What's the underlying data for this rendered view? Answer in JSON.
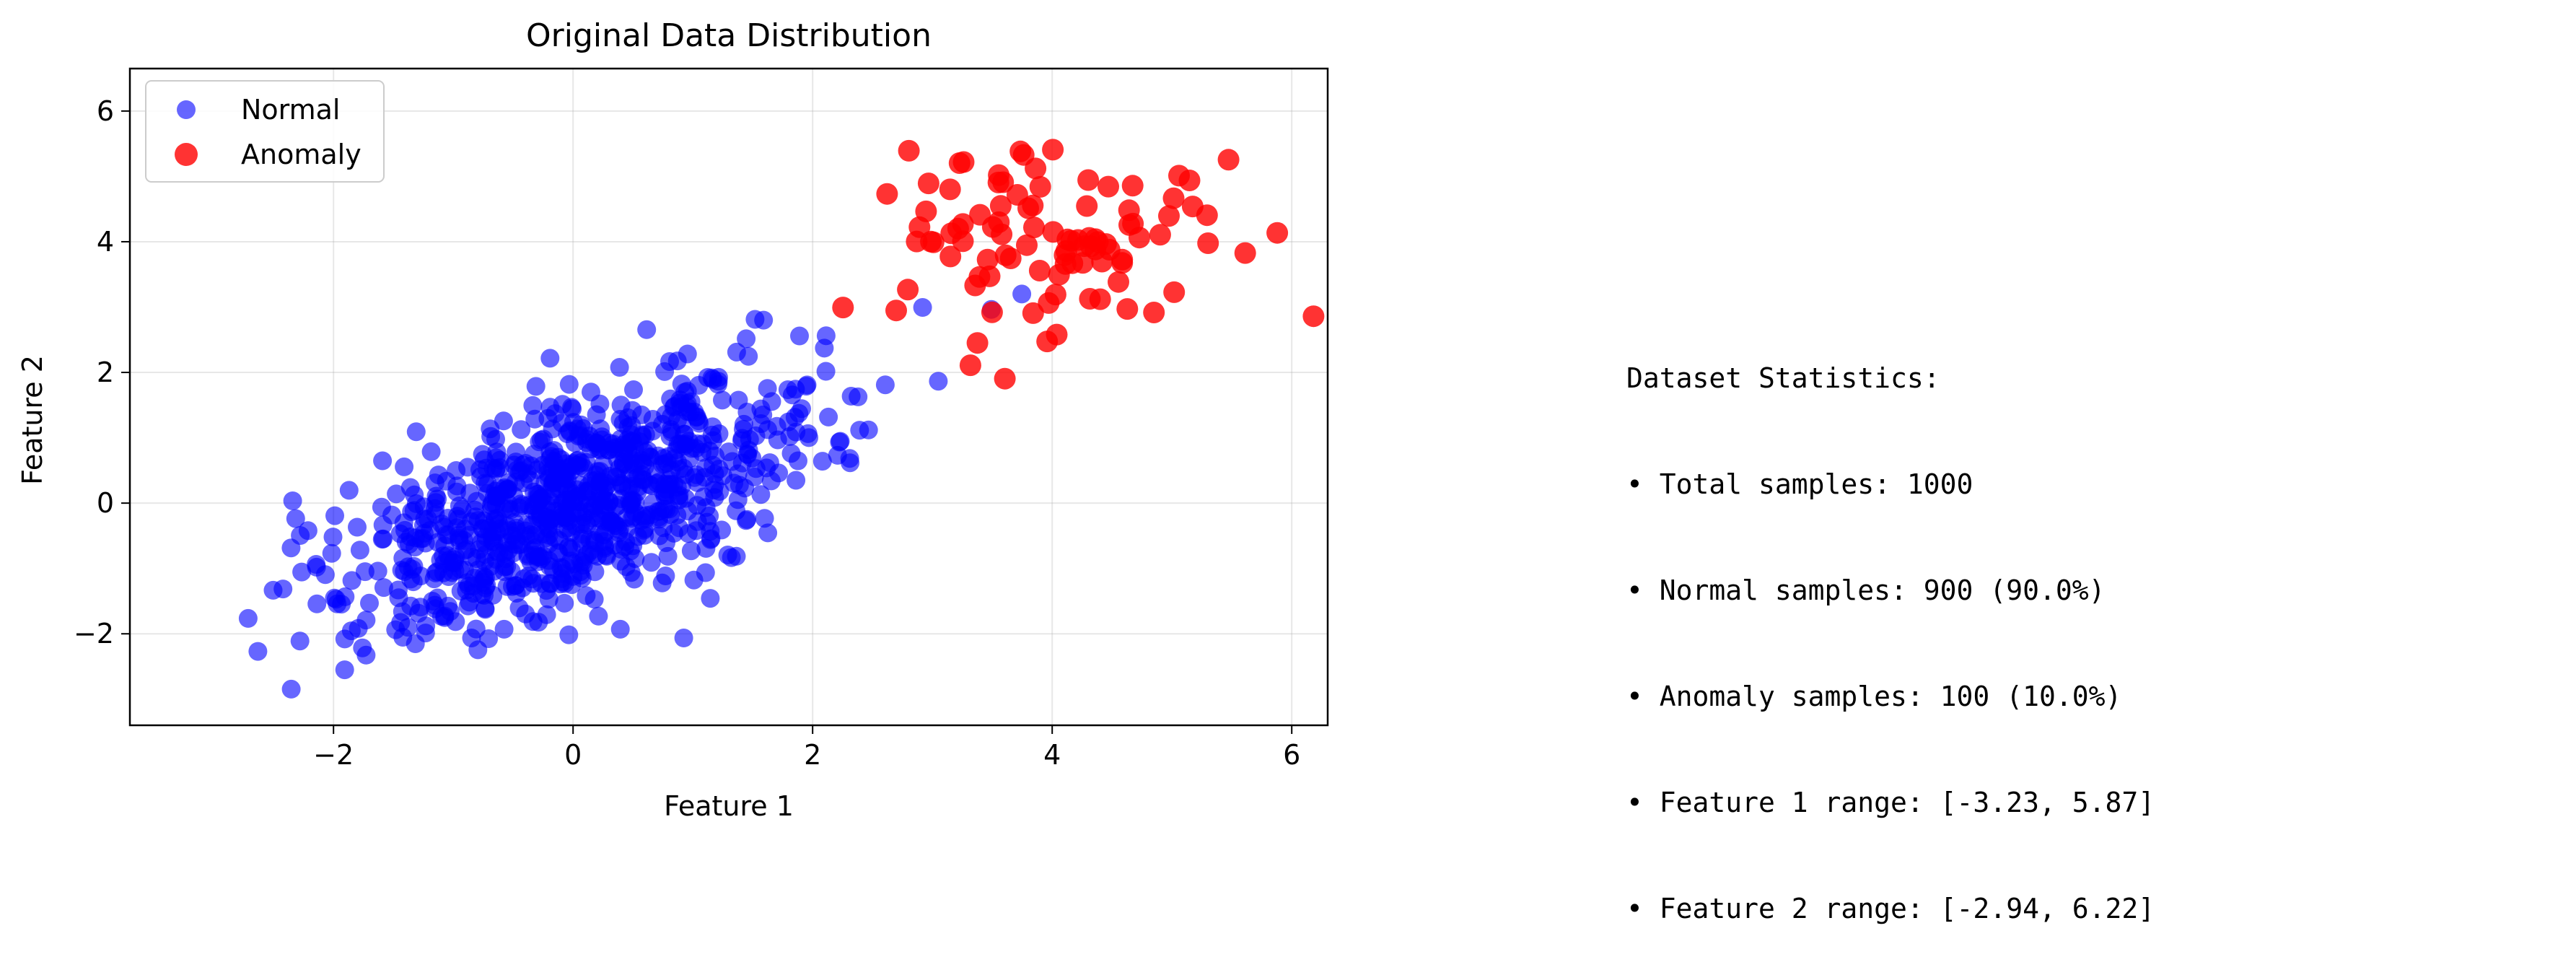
{
  "chart_data": {
    "type": "scatter",
    "title": "Original Data Distribution",
    "xlabel": "Feature 1",
    "ylabel": "Feature 2",
    "xlim": [
      -3.7,
      6.3
    ],
    "ylim": [
      -3.4,
      6.65
    ],
    "xticks": [
      -2,
      0,
      2,
      4,
      6
    ],
    "yticks": [
      -2,
      0,
      2,
      4,
      6
    ],
    "xtick_labels": [
      "−2",
      "0",
      "2",
      "4",
      "6"
    ],
    "ytick_labels": [
      "−2",
      "0",
      "2",
      "4",
      "6"
    ],
    "grid": true,
    "legend_position": "upper-left",
    "series": [
      {
        "name": "Normal",
        "color": "#0000ff",
        "alpha": 0.6,
        "n_points": 900,
        "generator": {
          "mean": [
            0.0,
            0.0
          ],
          "std": [
            1.0,
            1.0
          ],
          "corr": 0.6,
          "seed": 42
        }
      },
      {
        "name": "Anomaly",
        "color": "#ff0000",
        "alpha": 0.8,
        "n_points": 100,
        "generator": {
          "mean": [
            4.0,
            4.0
          ],
          "std": [
            0.7,
            0.75
          ],
          "corr": 0.0,
          "seed": 7
        }
      }
    ]
  },
  "stats": {
    "heading": "Dataset Statistics:",
    "lines": [
      "• Total samples: 1000",
      "• Normal samples: 900 (90.0%)",
      "• Anomaly samples: 100 (10.0%)",
      "• Feature 1 range: [-3.23, 5.87]",
      "• Feature 2 range: [-2.94, 6.22]"
    ]
  }
}
